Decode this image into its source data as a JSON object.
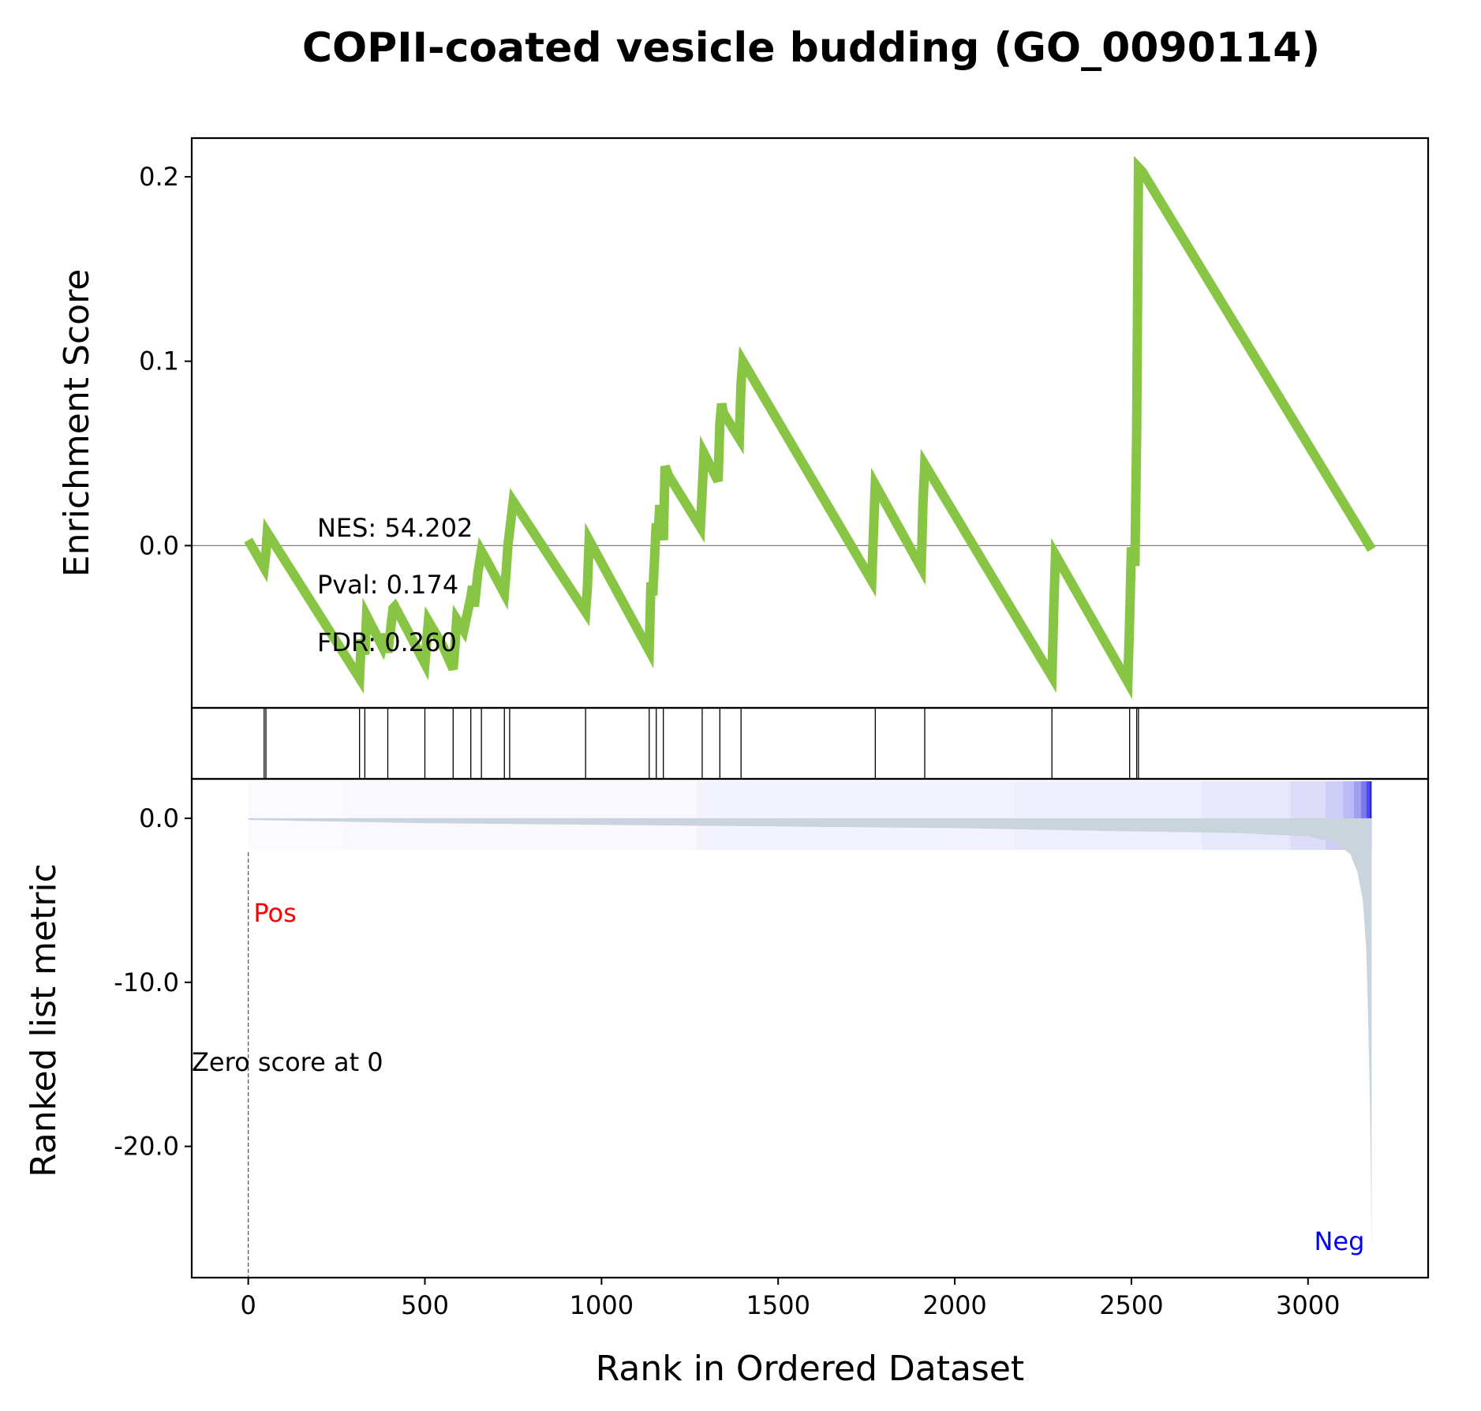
{
  "chart_data": {
    "type": "line",
    "title": "COPII-coated vesicle budding (GO_0090114)",
    "xlabel": "Rank in Ordered Dataset",
    "xlim": [
      -160,
      3340
    ],
    "xticks": [
      0,
      500,
      1000,
      1500,
      2000,
      2500,
      3000
    ],
    "panels": {
      "enrichment": {
        "ylabel": "Enrichment Score",
        "ylim": [
          -0.088,
          0.221
        ],
        "yticks": [
          0.0,
          0.1,
          0.2
        ],
        "ytick_labels": [
          "0.0",
          "0.1",
          "0.2"
        ],
        "line_color": "#88c544",
        "zero_line": true,
        "stats": {
          "nes": "NES: 54.202",
          "pval": "Pval: 0.174",
          "fdr": "FDR: 0.260"
        },
        "series": [
          {
            "x": [
              0,
              45,
              50,
              54,
              315,
              320,
              330,
              335,
              380,
              390,
              395,
              410,
              415,
              440,
              500,
              505,
              510,
              550,
              580,
              585,
              590,
              610,
              630,
              635,
              640,
              650,
              660,
              675,
              725,
              730,
              735,
              750,
              955,
              960,
              965,
              1135,
              1140,
              1145,
              1155,
              1160,
              1165,
              1175,
              1180,
              1190,
              1280,
              1285,
              1290,
              1330,
              1335,
              1340,
              1345,
              1390,
              1395,
              1400,
              1765,
              1770,
              1775,
              1905,
              1910,
              1915,
              2275,
              2280,
              2285,
              2490,
              2495,
              2500,
              2510,
              2515,
              2520,
              2525,
              2530,
              3180
            ],
            "y": [
              0.003,
              -0.012,
              -0.004,
              0.007,
              -0.072,
              -0.051,
              -0.059,
              -0.038,
              -0.055,
              -0.048,
              -0.058,
              -0.034,
              -0.033,
              -0.042,
              -0.064,
              -0.052,
              -0.041,
              -0.054,
              -0.067,
              -0.055,
              -0.04,
              -0.046,
              -0.028,
              -0.022,
              -0.033,
              -0.015,
              -0.003,
              -0.008,
              -0.026,
              -0.014,
              0.0,
              0.024,
              -0.036,
              -0.023,
              0.003,
              -0.057,
              -0.02,
              -0.027,
              0.012,
              0.005,
              0.022,
              0.003,
              0.043,
              0.038,
              0.01,
              0.029,
              0.05,
              0.035,
              0.066,
              0.077,
              0.072,
              0.058,
              0.088,
              0.1,
              -0.019,
              0.008,
              0.033,
              -0.012,
              0.023,
              0.044,
              -0.071,
              -0.036,
              -0.005,
              -0.074,
              -0.04,
              -0.001,
              -0.011,
              0.062,
              0.205,
              0.204,
              0.203,
              -0.002
            ]
          }
        ]
      },
      "hits": {
        "ranks": [
          45,
          50,
          315,
          330,
          395,
          500,
          580,
          630,
          660,
          725,
          740,
          955,
          1135,
          1155,
          1175,
          1285,
          1335,
          1395,
          1775,
          1915,
          2275,
          2495,
          2515,
          2520
        ]
      },
      "ranked_metric": {
        "ylabel": "Ranked list metric",
        "ylim": [
          -28.0,
          2.4
        ],
        "yticks": [
          0.0,
          -10.0,
          -20.0
        ],
        "ytick_labels": [
          "0.0",
          "-10.0",
          "-20.0"
        ],
        "fill_color": "#c9d4dd",
        "heatmap_color": "#1a1ae0",
        "pos_label": "Pos",
        "neg_label": "Neg",
        "pos_color": "#ff0000",
        "neg_color": "#0000ff",
        "zero_score_label": "Zero score at 0",
        "zero_score_rank": 0,
        "series": [
          {
            "x": [
              0,
              500,
              1000,
              1500,
              2000,
              2500,
              2800,
              3000,
              3080,
              3120,
              3140,
              3155,
              3165,
              3170,
              3175,
              3178,
              3180
            ],
            "y": [
              -0.1,
              -0.3,
              -0.4,
              -0.5,
              -0.6,
              -0.8,
              -0.9,
              -1.1,
              -1.5,
              -2.2,
              -3.3,
              -5.0,
              -8.0,
              -12.0,
              -17.0,
              -22.0,
              -26.5
            ]
          }
        ]
      }
    }
  }
}
